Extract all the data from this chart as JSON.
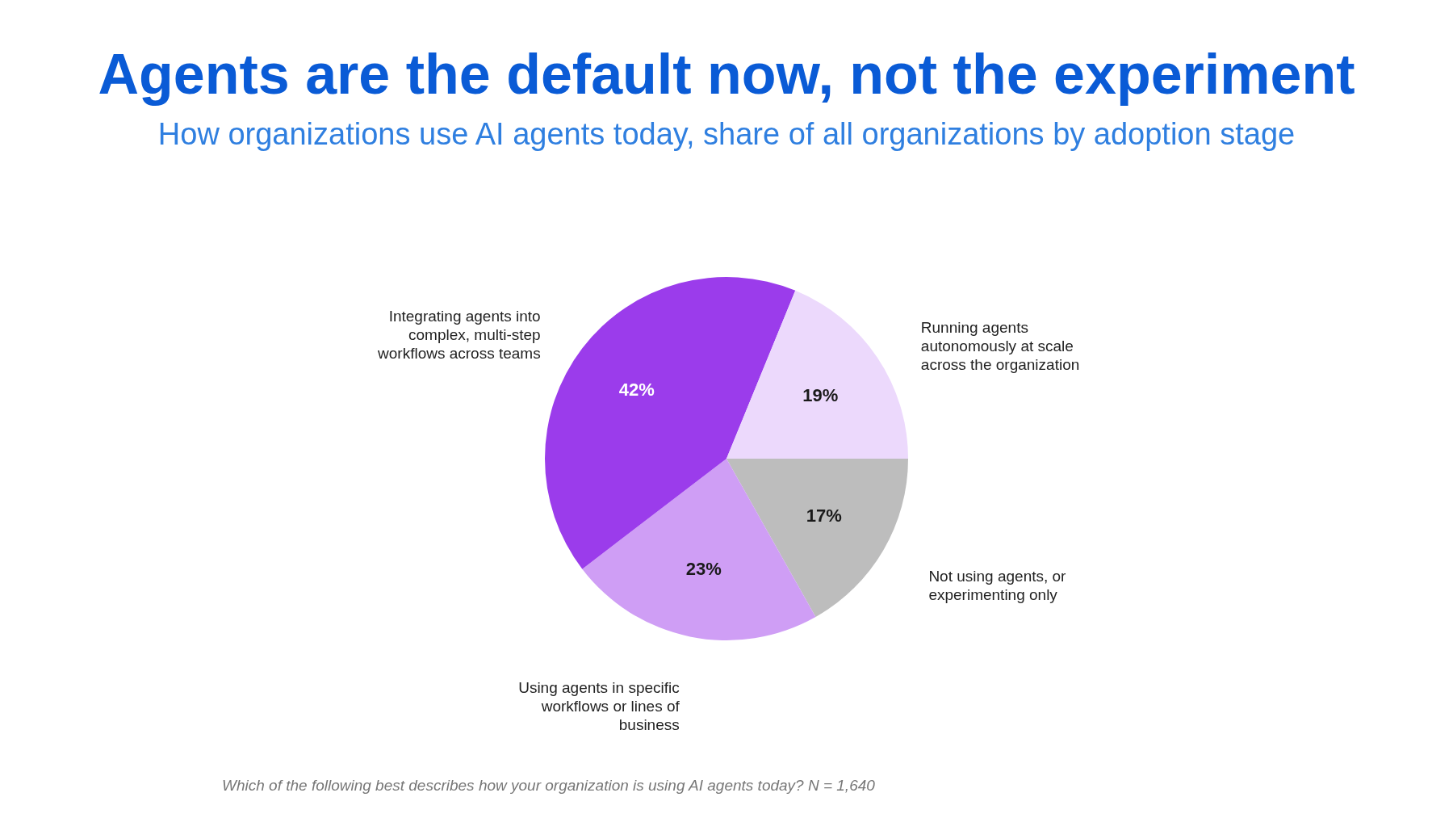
{
  "chart_data": {
    "type": "pie",
    "title": "Agents are the default now, not the experiment",
    "subtitle": "How organizations use AI agents today, share of all organizations by adoption stage",
    "categories": [
      "Not using agents, or experimenting only",
      "Using agents in specific workflows or lines of business",
      "Integrating agents into complex, multi-step workflows across teams",
      "Running agents autonomously at scale across the organization"
    ],
    "values": [
      17,
      23,
      42,
      19
    ],
    "colors": [
      "#bdbdbd",
      "#cf9ef5",
      "#9b3ceb",
      "#ecd9fc"
    ],
    "value_labels": [
      "17%",
      "23%",
      "42%",
      "19%"
    ],
    "annotations": [
      "Which of the following best describes how your organization is using AI agents today? N = 1,640"
    ]
  }
}
